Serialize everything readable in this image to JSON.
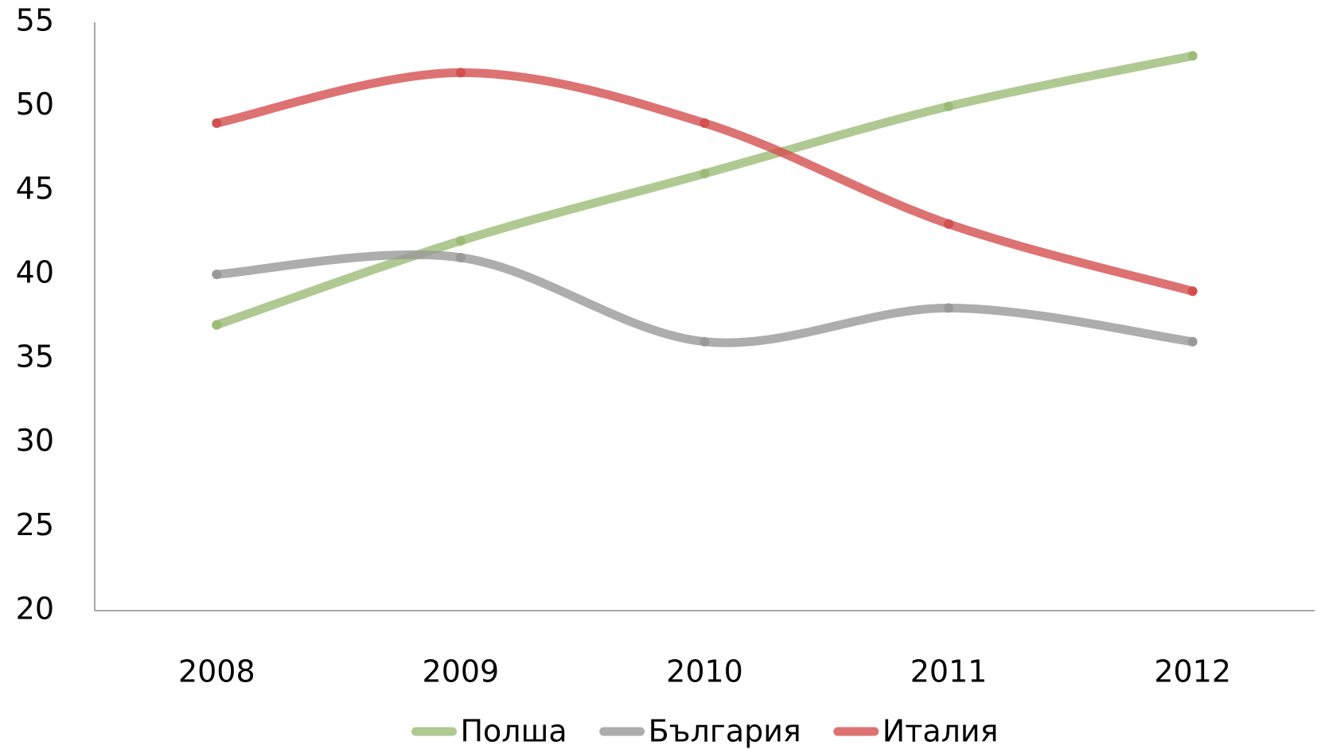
{
  "chart_data": {
    "type": "line",
    "smooth": true,
    "grid": false,
    "legend": "bottom",
    "categories": [
      "2008",
      "2009",
      "2010",
      "2011",
      "2012"
    ],
    "series": [
      {
        "name": "Полша",
        "color": "#9cbb77",
        "values": [
          37,
          42,
          46,
          50,
          53
        ]
      },
      {
        "name": "България",
        "color": "#999999",
        "values": [
          40,
          41,
          36,
          38,
          36
        ]
      },
      {
        "name": "Италия",
        "color": "#d44f50",
        "values": [
          49,
          52,
          49,
          43,
          39
        ]
      }
    ],
    "ylim": [
      20,
      55
    ],
    "yticks": [
      20,
      25,
      30,
      35,
      40,
      45,
      50,
      55
    ]
  }
}
